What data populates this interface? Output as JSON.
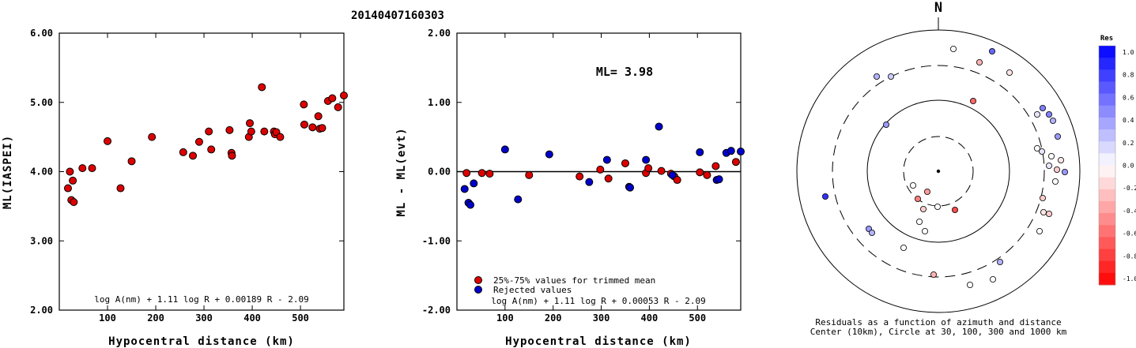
{
  "title": "20140407160303",
  "colors": {
    "accepted": "#dd0000",
    "rejected": "#0000cc"
  },
  "chart_data": [
    {
      "type": "scatter",
      "xlabel": "Hypocentral distance (km)",
      "ylabel": "ML(IASPEI)",
      "xlim": [
        0,
        590
      ],
      "ylim": [
        2.0,
        6.0
      ],
      "xticks": [
        "100",
        "200",
        "300",
        "400",
        "500"
      ],
      "yticks": [
        "2.00",
        "3.00",
        "4.00",
        "5.00",
        "6.00"
      ],
      "formula": "log A(nm) + 1.11 log R + 0.00189 R - 2.09",
      "series": [
        {
          "color": "#dd0000",
          "points": [
            [
              18,
              3.76
            ],
            [
              22,
              4.0
            ],
            [
              25,
              3.59
            ],
            [
              28,
              3.87
            ],
            [
              30,
              3.56
            ],
            [
              48,
              4.05
            ],
            [
              68,
              4.05
            ],
            [
              100,
              4.44
            ],
            [
              127,
              3.76
            ],
            [
              150,
              4.15
            ],
            [
              192,
              4.5
            ],
            [
              257,
              4.28
            ],
            [
              277,
              4.23
            ],
            [
              290,
              4.43
            ],
            [
              310,
              4.58
            ],
            [
              315,
              4.32
            ],
            [
              353,
              4.6
            ],
            [
              357,
              4.27
            ],
            [
              358,
              4.23
            ],
            [
              393,
              4.5
            ],
            [
              395,
              4.7
            ],
            [
              398,
              4.58
            ],
            [
              420,
              5.22
            ],
            [
              425,
              4.58
            ],
            [
              445,
              4.58
            ],
            [
              447,
              4.54
            ],
            [
              450,
              4.57
            ],
            [
              458,
              4.5
            ],
            [
              507,
              4.97
            ],
            [
              508,
              4.68
            ],
            [
              525,
              4.64
            ],
            [
              537,
              4.8
            ],
            [
              540,
              4.62
            ],
            [
              545,
              4.63
            ],
            [
              557,
              5.02
            ],
            [
              566,
              5.06
            ],
            [
              578,
              4.93
            ],
            [
              590,
              5.1
            ]
          ]
        }
      ]
    },
    {
      "type": "scatter",
      "xlabel": "Hypocentral distance (km)",
      "ylabel": "ML - ML(evt)",
      "xlim": [
        0,
        590
      ],
      "ylim": [
        -2.0,
        2.0
      ],
      "xticks": [
        "100",
        "200",
        "300",
        "400",
        "500"
      ],
      "yticks": [
        "-2.00",
        "-1.00",
        "0.00",
        "1.00",
        "2.00"
      ],
      "annotation": "ML= 3.98",
      "legend": [
        "25%-75% values for trimmed mean",
        "Rejected values"
      ],
      "legend_position": "bottom-left",
      "formula": "log A(nm) + 1.11 log R + 0.00053 R - 2.09",
      "series": [
        {
          "name": "25%-75% values for trimmed mean",
          "color": "#dd0000",
          "points": [
            [
              20,
              -0.02
            ],
            [
              52,
              -0.02
            ],
            [
              68,
              -0.03
            ],
            [
              150,
              -0.05
            ],
            [
              255,
              -0.07
            ],
            [
              298,
              0.03
            ],
            [
              315,
              -0.1
            ],
            [
              350,
              0.12
            ],
            [
              393,
              -0.02
            ],
            [
              398,
              0.05
            ],
            [
              425,
              0.01
            ],
            [
              445,
              -0.03
            ],
            [
              452,
              -0.07
            ],
            [
              458,
              -0.12
            ],
            [
              505,
              -0.01
            ],
            [
              520,
              -0.05
            ],
            [
              538,
              0.08
            ],
            [
              580,
              0.14
            ]
          ]
        },
        {
          "name": "Rejected values",
          "color": "#0000cc",
          "points": [
            [
              16,
              -0.25
            ],
            [
              24,
              -0.45
            ],
            [
              28,
              -0.48
            ],
            [
              35,
              -0.17
            ],
            [
              100,
              0.32
            ],
            [
              127,
              -0.4
            ],
            [
              192,
              0.25
            ],
            [
              275,
              -0.15
            ],
            [
              312,
              0.17
            ],
            [
              358,
              -0.22
            ],
            [
              360,
              -0.23
            ],
            [
              393,
              0.17
            ],
            [
              420,
              0.65
            ],
            [
              448,
              -0.05
            ],
            [
              505,
              0.28
            ],
            [
              540,
              -0.12
            ],
            [
              545,
              -0.11
            ],
            [
              560,
              0.27
            ],
            [
              570,
              0.3
            ],
            [
              590,
              0.29
            ]
          ]
        }
      ]
    },
    {
      "type": "polar-scatter",
      "north_label": "N",
      "caption_line1": "Residuals as a function of azimuth and distance",
      "caption_line2": "Center (10km), Circle at 30, 100, 300 and 1000 km",
      "colorbar_title": "Res",
      "colorbar_ticks": [
        "1.0",
        "0.8",
        "0.6",
        "0.4",
        "0.2",
        "0.0",
        "-0.2",
        "-0.4",
        "-0.6",
        "-0.8",
        "-1.0"
      ],
      "points": [
        {
          "x": 1206,
          "y": 62,
          "res": 0.0
        },
        {
          "x": 1239,
          "y": 79,
          "res": -0.3
        },
        {
          "x": 1255,
          "y": 65,
          "res": 0.6
        },
        {
          "x": 1277,
          "y": 92,
          "res": -0.1
        },
        {
          "x": 1109,
          "y": 97,
          "res": 0.3
        },
        {
          "x": 1127,
          "y": 97,
          "res": 0.2
        },
        {
          "x": 1231,
          "y": 128,
          "res": -0.6
        },
        {
          "x": 1319,
          "y": 137,
          "res": 0.5
        },
        {
          "x": 1312,
          "y": 145,
          "res": 0.1
        },
        {
          "x": 1327,
          "y": 145,
          "res": 0.5
        },
        {
          "x": 1332,
          "y": 153,
          "res": 0.3
        },
        {
          "x": 1121,
          "y": 158,
          "res": 0.4
        },
        {
          "x": 1338,
          "y": 173,
          "res": 0.4
        },
        {
          "x": 1312,
          "y": 188,
          "res": 0.0
        },
        {
          "x": 1318,
          "y": 192,
          "res": 0.1
        },
        {
          "x": 1330,
          "y": 198,
          "res": 0.0
        },
        {
          "x": 1342,
          "y": 203,
          "res": -0.1
        },
        {
          "x": 1327,
          "y": 210,
          "res": 0.1
        },
        {
          "x": 1337,
          "y": 215,
          "res": -0.2
        },
        {
          "x": 1347,
          "y": 218,
          "res": 0.4
        },
        {
          "x": 1335,
          "y": 230,
          "res": 0.0
        },
        {
          "x": 1044,
          "y": 249,
          "res": 0.8
        },
        {
          "x": 1155,
          "y": 235,
          "res": 0.0
        },
        {
          "x": 1173,
          "y": 243,
          "res": -0.4
        },
        {
          "x": 1161,
          "y": 252,
          "res": -0.5
        },
        {
          "x": 1168,
          "y": 265,
          "res": -0.2
        },
        {
          "x": 1186,
          "y": 262,
          "res": 0.0
        },
        {
          "x": 1208,
          "y": 266,
          "res": -0.7
        },
        {
          "x": 1319,
          "y": 251,
          "res": -0.2
        },
        {
          "x": 1320,
          "y": 269,
          "res": -0.1
        },
        {
          "x": 1327,
          "y": 271,
          "res": -0.2
        },
        {
          "x": 1163,
          "y": 281,
          "res": 0.0
        },
        {
          "x": 1170,
          "y": 293,
          "res": 0.0
        },
        {
          "x": 1315,
          "y": 293,
          "res": 0.0
        },
        {
          "x": 1099,
          "y": 290,
          "res": 0.4
        },
        {
          "x": 1103,
          "y": 295,
          "res": 0.3
        },
        {
          "x": 1143,
          "y": 314,
          "res": 0.0
        },
        {
          "x": 1265,
          "y": 332,
          "res": 0.3
        },
        {
          "x": 1181,
          "y": 348,
          "res": -0.3
        },
        {
          "x": 1256,
          "y": 354,
          "res": 0.0
        },
        {
          "x": 1227,
          "y": 361,
          "res": 0.0
        }
      ]
    }
  ]
}
